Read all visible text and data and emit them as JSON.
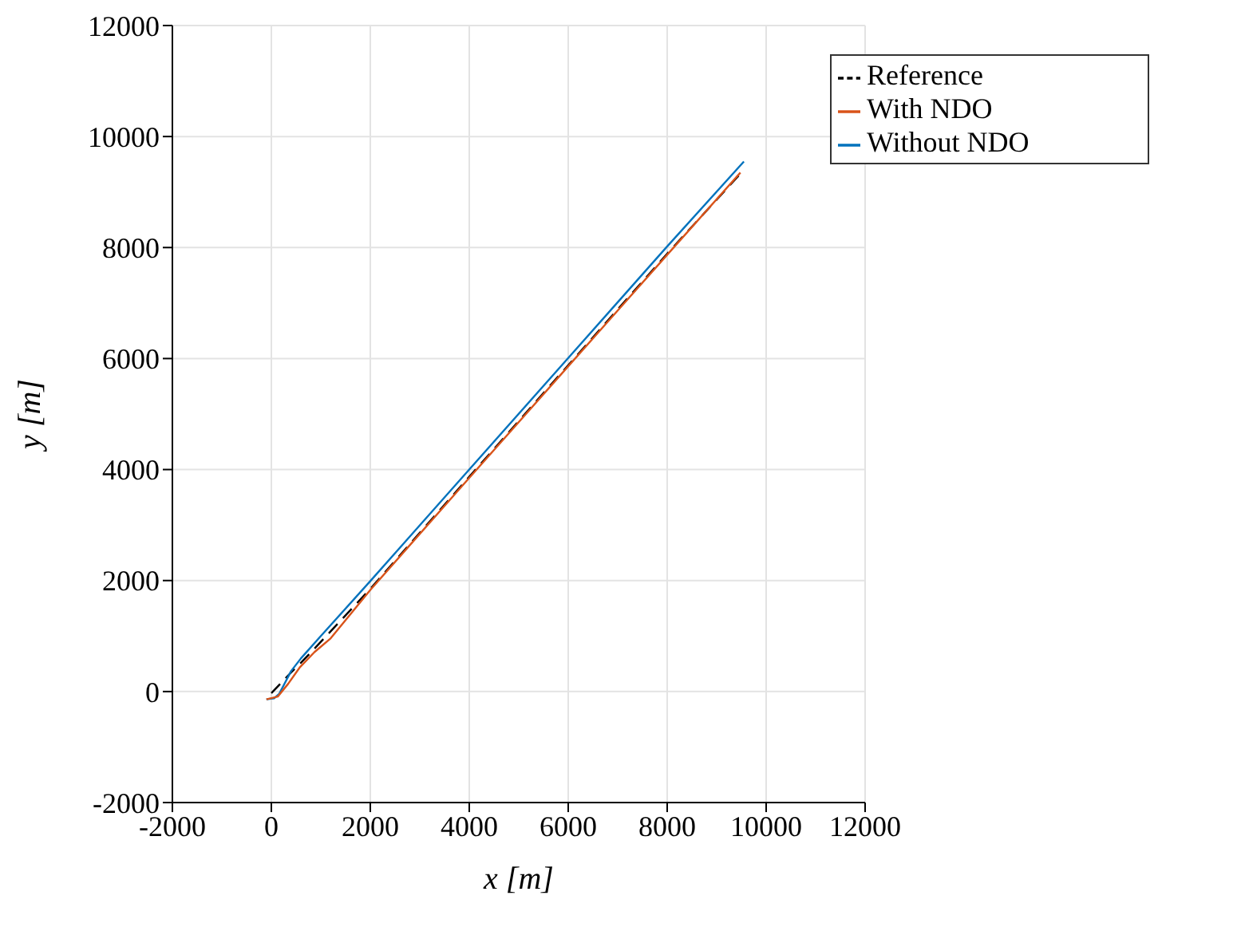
{
  "chart_data": {
    "type": "line",
    "xlabel": "x [m]",
    "ylabel": "y [m]",
    "xlim": [
      -2000,
      12000
    ],
    "xticks": [
      -2000,
      0,
      2000,
      4000,
      6000,
      8000,
      10000,
      12000
    ],
    "ylim": [
      -2000,
      12000
    ],
    "yticks": [
      -2000,
      0,
      2000,
      4000,
      6000,
      8000,
      10000,
      12000
    ],
    "grid": true,
    "legend": "top right",
    "series": [
      {
        "name": "Reference",
        "color": "#000000",
        "line_style": "dashed",
        "x": [
          0,
          180,
          350,
          600,
          900,
          2000,
          4000,
          6000,
          8000,
          9450
        ],
        "values": [
          -30,
          140,
          300,
          520,
          800,
          1850,
          3870,
          5880,
          7890,
          9300
        ]
      },
      {
        "name": "Without NDO",
        "color": "#0072bd",
        "line_style": "solid",
        "x": [
          -100,
          60,
          160,
          260,
          400,
          600,
          1000,
          2000,
          4000,
          6000,
          8000,
          9550
        ],
        "values": [
          -140,
          -120,
          -40,
          130,
          370,
          600,
          1000,
          1990,
          4000,
          6010,
          8020,
          9550
        ]
      },
      {
        "name": "With NDO",
        "color": "#d95319",
        "line_style": "solid",
        "x": [
          -100,
          130,
          340,
          570,
          870,
          1200,
          2000,
          4000,
          6000,
          8000,
          9480
        ],
        "values": [
          -140,
          -90,
          140,
          430,
          710,
          960,
          1830,
          3850,
          5860,
          7870,
          9350
        ]
      }
    ]
  }
}
